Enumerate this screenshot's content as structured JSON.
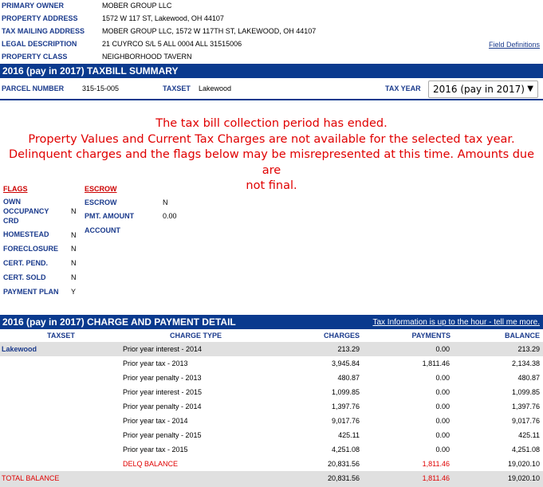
{
  "property": {
    "rows": [
      {
        "label": "PRIMARY OWNER",
        "value": "MOBER GROUP LLC"
      },
      {
        "label": "PROPERTY ADDRESS",
        "value": "1572 W 117 ST, Lakewood, OH 44107"
      },
      {
        "label": "TAX MAILING ADDRESS",
        "value": "MOBER GROUP LLC, 1572 W 117TH ST, LAKEWOOD, OH 44107"
      },
      {
        "label": "LEGAL DESCRIPTION",
        "value": "21 CUYRCO S/L 5 ALL 0004 ALL 31515006"
      },
      {
        "label": "PROPERTY CLASS",
        "value": "NEIGHBORHOOD TAVERN"
      }
    ],
    "field_definitions_link": "Field Definitions"
  },
  "taxbill": {
    "title": "2016 (pay in 2017) TAXBILL SUMMARY",
    "parcel_label": "PARCEL NUMBER",
    "parcel_value": "315-15-005",
    "taxset_label": "TAXSET",
    "taxset_value": "Lakewood",
    "tax_year_label": "TAX YEAR",
    "tax_year_selected": "2016 (pay in 2017)"
  },
  "notice": {
    "line1": "The tax bill collection period has ended.",
    "line2": "Property Values and Current Tax Charges are not available for the selected tax year.",
    "line3": "Delinquent charges and the flags below may be misrepresented at this time. Amounts due are",
    "line4": "not final."
  },
  "flags": {
    "title": "FLAGS",
    "items": [
      {
        "label": "OWN",
        "label2": "OCCUPANCY",
        "label3": "CRD",
        "value": "N"
      },
      {
        "label": "HOMESTEAD",
        "value": "N"
      },
      {
        "label": "FORECLOSURE",
        "value": "N"
      },
      {
        "label": "CERT. PEND.",
        "value": "N"
      },
      {
        "label": "CERT. SOLD",
        "value": "N"
      },
      {
        "label": "PAYMENT PLAN",
        "value": "Y"
      }
    ]
  },
  "escrow": {
    "title": "ESCROW",
    "items": [
      {
        "label": "ESCROW",
        "value": "N"
      },
      {
        "label": "PMT. AMOUNT",
        "value": "0.00"
      },
      {
        "label": "ACCOUNT",
        "value": ""
      }
    ]
  },
  "detail": {
    "title": "2016 (pay in 2017) CHARGE AND PAYMENT DETAIL",
    "info_link": "Tax Information is up to the hour - tell me more.",
    "headers": {
      "taxset": "TAXSET",
      "charge_type": "CHARGE TYPE",
      "charges": "CHARGES",
      "payments": "PAYMENTS",
      "balance": "BALANCE"
    },
    "taxset": "Lakewood",
    "rows": [
      {
        "type": "Prior year interest - 2014",
        "charges": "213.29",
        "payments": "0.00",
        "balance": "213.29"
      },
      {
        "type": "Prior year tax - 2013",
        "charges": "3,945.84",
        "payments": "1,811.46",
        "balance": "2,134.38"
      },
      {
        "type": "Prior year penalty - 2013",
        "charges": "480.87",
        "payments": "0.00",
        "balance": "480.87"
      },
      {
        "type": "Prior year interest - 2015",
        "charges": "1,099.85",
        "payments": "0.00",
        "balance": "1,099.85"
      },
      {
        "type": "Prior year penalty - 2014",
        "charges": "1,397.76",
        "payments": "0.00",
        "balance": "1,397.76"
      },
      {
        "type": "Prior year tax - 2014",
        "charges": "9,017.76",
        "payments": "0.00",
        "balance": "9,017.76"
      },
      {
        "type": "Prior year penalty - 2015",
        "charges": "425.11",
        "payments": "0.00",
        "balance": "425.11"
      },
      {
        "type": "Prior year tax - 2015",
        "charges": "4,251.08",
        "payments": "0.00",
        "balance": "4,251.08"
      }
    ],
    "delq": {
      "type": "DELQ BALANCE",
      "charges": "20,831.56",
      "payments": "1,811.46",
      "balance": "19,020.10"
    },
    "total": {
      "label": "TOTAL BALANCE",
      "charges": "20,831.56",
      "payments": "1,811.46",
      "balance": "19,020.10"
    }
  },
  "colors": {
    "header_bar": "#0a3a8e",
    "label_blue": "#1a3a8c",
    "notice_red": "#e00000",
    "gray_row": "#e0e0e0"
  }
}
